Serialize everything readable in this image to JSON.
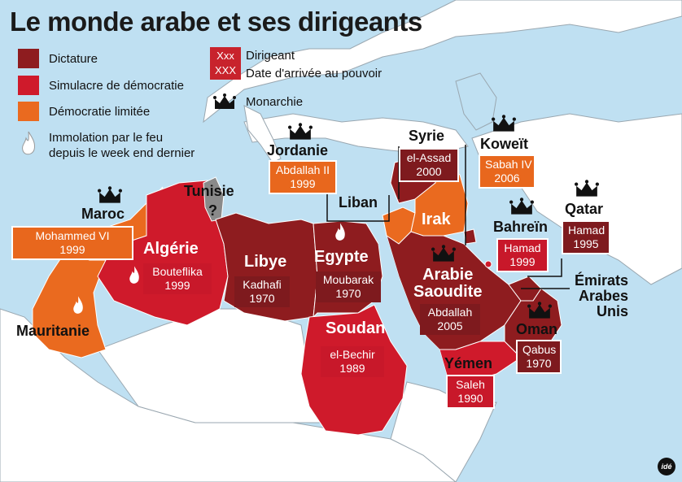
{
  "title": "Le monde arabe et ses dirigeants",
  "colors": {
    "dictature": "#8e1c1f",
    "simulacre": "#cf1a2b",
    "democratie_limitee": "#ea6a1f",
    "sea": "#bfe0f2",
    "land": "#ffffff",
    "border": "#9aa7b0"
  },
  "legend": {
    "dictature": "Dictature",
    "simulacre": "Simulacre de démocratie",
    "democratie_limitee": "Démocratie limitée",
    "immolation": "Immolation par le feu\ndepuis le week end dernier",
    "dirigeant_top": "Xxx",
    "dirigeant_bottom": "XXX",
    "dirigeant": "Dirigeant",
    "date": "Date d'arrivée au pouvoir",
    "monarchie": "Monarchie"
  },
  "countries": {
    "mauritanie": {
      "name": "Mauritanie"
    },
    "maroc": {
      "name": "Maroc",
      "leader": "Mohammed VI",
      "year": "1999"
    },
    "algerie": {
      "name": "Algérie",
      "leader": "Bouteflika",
      "year": "1999"
    },
    "tunisie": {
      "name": "Tunisie",
      "unknown": "?"
    },
    "libye": {
      "name": "Libye",
      "leader": "Kadhafi",
      "year": "1970"
    },
    "egypte": {
      "name": "Egypte",
      "leader": "Moubarak",
      "year": "1970"
    },
    "soudan": {
      "name": "Soudan",
      "leader": "el-Bechir",
      "year": "1989"
    },
    "jordanie": {
      "name": "Jordanie",
      "leader": "Abdallah II",
      "year": "1999"
    },
    "syrie": {
      "name": "Syrie",
      "leader": "el-Assad",
      "year": "2000"
    },
    "liban": {
      "name": "Liban"
    },
    "irak": {
      "name": "Irak"
    },
    "koweit": {
      "name": "Koweït",
      "leader": "Sabah IV",
      "year": "2006"
    },
    "bahrein": {
      "name": "Bahreïn",
      "leader": "Hamad",
      "year": "1999"
    },
    "qatar": {
      "name": "Qatar",
      "leader": "Hamad",
      "year": "1995"
    },
    "emirats": {
      "name": "Émirats\nArabes\nUnis"
    },
    "arabie": {
      "name": "Arabie\nSaoudite",
      "leader": "Abdallah",
      "year": "2005"
    },
    "oman": {
      "name": "Oman",
      "leader": "Qabus",
      "year": "1970"
    },
    "yemen": {
      "name": "Yémen",
      "leader": "Saleh",
      "year": "1990"
    }
  },
  "logo": "idé"
}
